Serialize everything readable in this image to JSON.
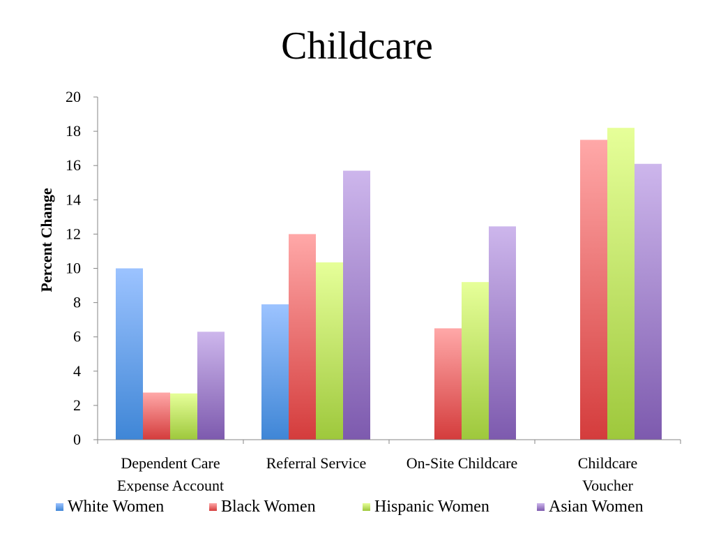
{
  "chart_data": {
    "type": "bar",
    "title": "Childcare",
    "xlabel": "",
    "ylabel": "Percent Change",
    "ylim": [
      0,
      20
    ],
    "yticks": [
      0,
      2,
      4,
      6,
      8,
      10,
      12,
      14,
      16,
      18,
      20
    ],
    "ytick_labels": [
      "0",
      "2",
      "4",
      "6",
      "8",
      "10",
      "12",
      "14",
      "16",
      "18",
      "20"
    ],
    "categories": [
      [
        "Dependent Care",
        "Expense Account"
      ],
      [
        "Referral Service"
      ],
      [
        "On-Site Childcare"
      ],
      [
        "Childcare",
        "Voucher"
      ]
    ],
    "series": [
      {
        "name": "White Women",
        "values": [
          10.0,
          7.9,
          null,
          null
        ],
        "color_top": "#9cc3ff",
        "color_bottom": "#3f86d6"
      },
      {
        "name": "Black Women",
        "values": [
          2.75,
          12.0,
          6.5,
          17.5
        ],
        "color_top": "#ffa8a8",
        "color_bottom": "#d43c3c"
      },
      {
        "name": "Hispanic Women",
        "values": [
          2.7,
          10.35,
          9.2,
          18.2
        ],
        "color_top": "#e6ff99",
        "color_bottom": "#9ec83c"
      },
      {
        "name": "Asian Women",
        "values": [
          6.3,
          15.7,
          12.45,
          16.1
        ],
        "color_top": "#cdb6ec",
        "color_bottom": "#7d5aae"
      }
    ],
    "legend_position": "bottom",
    "grid": false
  }
}
